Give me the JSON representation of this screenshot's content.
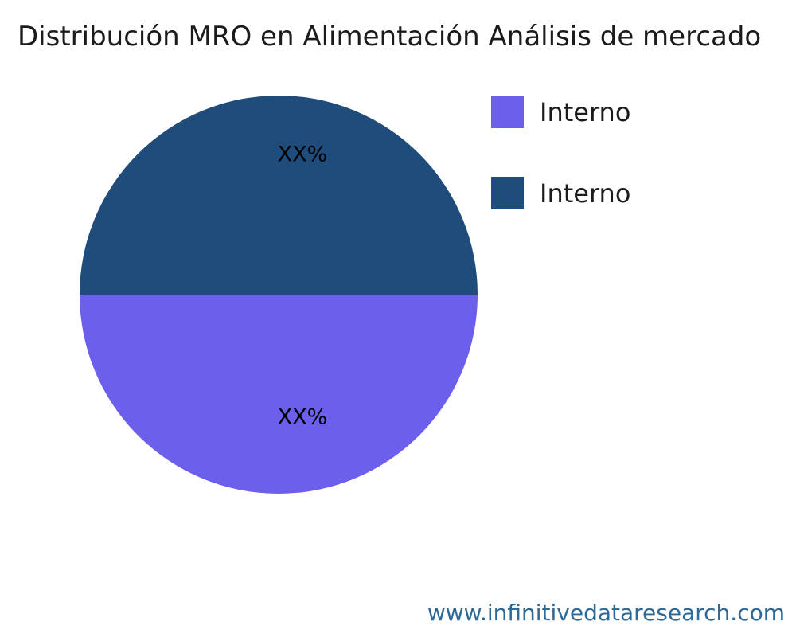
{
  "title": {
    "text": "Distribución MRO en Alimentación Análisis de mercado"
  },
  "pie": {
    "slices": [
      {
        "name": "top",
        "label": "XX%",
        "color": "#1F4C7A"
      },
      {
        "name": "bottom",
        "label": "XX%",
        "color": "#6C5FEC"
      }
    ],
    "label_color": "#000000"
  },
  "legend": {
    "position": "right",
    "items": [
      {
        "label": "Interno",
        "color": "#6C5FEC"
      },
      {
        "label": "Interno",
        "color": "#1F4C7A"
      }
    ]
  },
  "footer": {
    "url": "www.infinitivedataresearch.com",
    "color": "#2E6895"
  },
  "chart_data": {
    "type": "pie",
    "title": "Distribución MRO en Alimentación Análisis de mercado",
    "labels": [
      "Interno",
      "Interno"
    ],
    "values": [
      50,
      50
    ],
    "value_labels": [
      "XX%",
      "XX%"
    ],
    "colors": [
      "#1F4C7A",
      "#6C5FEC"
    ],
    "legend_position": "right",
    "note": "Two equal half-circle slices; top half dark navy, bottom half purple; percentages masked as XX% in source image",
    "source": "www.infinitivedataresearch.com"
  }
}
